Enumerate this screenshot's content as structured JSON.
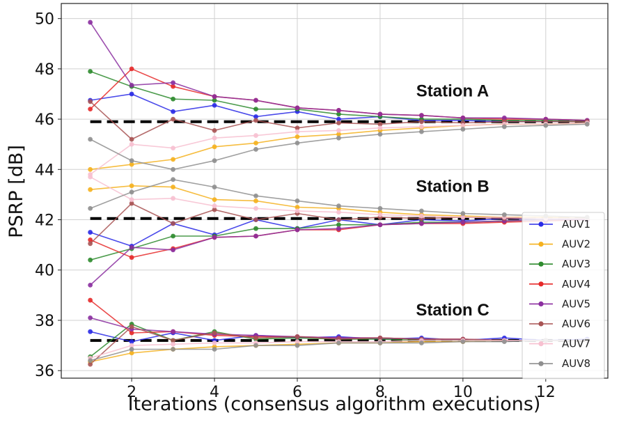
{
  "chart_data": {
    "type": "line",
    "xlabel": "Iterations  (consensus algorithm executions)",
    "ylabel": "PSRP [dB]",
    "xlim": [
      0.3,
      13.5
    ],
    "ylim": [
      35.7,
      50.6
    ],
    "xticks": [
      2,
      4,
      6,
      8,
      10,
      12
    ],
    "yticks": [
      36,
      38,
      40,
      42,
      44,
      46,
      48,
      50
    ],
    "grid": true,
    "legend_position": "bottom-right",
    "x": [
      1,
      2,
      3,
      4,
      5,
      6,
      7,
      8,
      9,
      10,
      11,
      12,
      13
    ],
    "series": [
      {
        "name": "AUV1",
        "color": "#2a2ae6"
      },
      {
        "name": "AUV2",
        "color": "#f5b11e"
      },
      {
        "name": "AUV3",
        "color": "#2e8b2e"
      },
      {
        "name": "AUV4",
        "color": "#e62a2a"
      },
      {
        "name": "AUV5",
        "color": "#8b2fa0"
      },
      {
        "name": "AUV6",
        "color": "#a85454"
      },
      {
        "name": "AUV7",
        "color": "#f7c0d0"
      },
      {
        "name": "AUV8",
        "color": "#8f8f8f"
      }
    ],
    "groups": [
      {
        "label": "Station A",
        "reference": 45.9,
        "values": {
          "AUV1": [
            46.75,
            47.0,
            46.3,
            46.55,
            46.1,
            46.3,
            46.0,
            46.1,
            45.95,
            45.95,
            45.9,
            45.9,
            45.9
          ],
          "AUV2": [
            44.0,
            44.2,
            44.4,
            44.9,
            45.05,
            45.3,
            45.4,
            45.55,
            45.65,
            45.75,
            45.8,
            45.8,
            45.85
          ],
          "AUV3": [
            47.9,
            47.3,
            46.8,
            46.75,
            46.4,
            46.4,
            46.2,
            46.1,
            46.0,
            46.0,
            45.95,
            45.95,
            45.9
          ],
          "AUV4": [
            46.4,
            48.0,
            47.3,
            46.9,
            46.75,
            46.45,
            46.35,
            46.2,
            46.15,
            46.05,
            46.0,
            46.0,
            45.95
          ],
          "AUV5": [
            49.85,
            47.35,
            47.45,
            46.9,
            46.75,
            46.45,
            46.35,
            46.2,
            46.15,
            46.05,
            46.05,
            46.0,
            45.95
          ],
          "AUV6": [
            46.7,
            45.2,
            46.0,
            45.55,
            45.95,
            45.65,
            45.85,
            45.8,
            45.9,
            45.85,
            45.9,
            45.9,
            45.9
          ],
          "AUV7": [
            43.8,
            45.0,
            44.85,
            45.25,
            45.35,
            45.5,
            45.55,
            45.65,
            45.7,
            45.75,
            45.8,
            45.8,
            45.85
          ],
          "AUV8": [
            45.2,
            44.35,
            44.0,
            44.35,
            44.8,
            45.05,
            45.25,
            45.4,
            45.5,
            45.6,
            45.7,
            45.75,
            45.8
          ]
        }
      },
      {
        "label": "Station B",
        "reference": 42.05,
        "values": {
          "AUV1": [
            41.5,
            40.95,
            41.85,
            41.4,
            42.0,
            41.65,
            42.0,
            41.8,
            42.0,
            41.95,
            42.05,
            42.0,
            42.05
          ],
          "AUV2": [
            43.2,
            43.35,
            43.3,
            42.8,
            42.75,
            42.5,
            42.45,
            42.3,
            42.2,
            42.15,
            42.1,
            42.1,
            42.05
          ],
          "AUV3": [
            40.4,
            40.85,
            41.35,
            41.35,
            41.65,
            41.65,
            41.8,
            41.8,
            41.9,
            41.9,
            41.95,
            42.0,
            42.0
          ],
          "AUV4": [
            41.2,
            40.5,
            40.85,
            41.3,
            41.35,
            41.6,
            41.6,
            41.8,
            41.85,
            41.85,
            41.9,
            41.95,
            42.0
          ],
          "AUV5": [
            39.4,
            40.9,
            40.8,
            41.3,
            41.35,
            41.6,
            41.65,
            41.8,
            41.85,
            41.9,
            41.95,
            42.0,
            42.0
          ],
          "AUV6": [
            41.05,
            42.65,
            41.85,
            42.4,
            42.0,
            42.25,
            42.0,
            42.1,
            42.05,
            42.1,
            42.05,
            42.05,
            42.05
          ],
          "AUV7": [
            43.7,
            42.8,
            42.85,
            42.55,
            42.45,
            42.35,
            42.3,
            42.2,
            42.15,
            42.1,
            42.1,
            42.05,
            42.05
          ],
          "AUV8": [
            42.45,
            43.1,
            43.6,
            43.3,
            42.95,
            42.75,
            42.55,
            42.45,
            42.35,
            42.25,
            42.2,
            42.15,
            42.1
          ]
        }
      },
      {
        "label": "Station C",
        "reference": 37.2,
        "values": {
          "AUV1": [
            37.55,
            37.15,
            37.5,
            37.2,
            37.4,
            37.3,
            37.35,
            37.25,
            37.3,
            37.2,
            37.3,
            37.2,
            37.25
          ],
          "AUV2": [
            36.35,
            36.7,
            36.85,
            36.95,
            37.0,
            37.05,
            37.1,
            37.1,
            37.15,
            37.15,
            37.2,
            37.2,
            37.2
          ],
          "AUV3": [
            36.55,
            37.85,
            37.2,
            37.55,
            37.25,
            37.3,
            37.25,
            37.25,
            37.2,
            37.2,
            37.2,
            37.2,
            37.2
          ],
          "AUV4": [
            38.8,
            37.5,
            37.55,
            37.4,
            37.35,
            37.35,
            37.3,
            37.3,
            37.25,
            37.25,
            37.2,
            37.2,
            37.2
          ],
          "AUV5": [
            38.1,
            37.65,
            37.55,
            37.45,
            37.4,
            37.35,
            37.3,
            37.3,
            37.25,
            37.25,
            37.2,
            37.2,
            37.2
          ],
          "AUV6": [
            36.25,
            37.75,
            37.2,
            37.5,
            37.3,
            37.35,
            37.25,
            37.3,
            37.25,
            37.25,
            37.2,
            37.2,
            37.2
          ],
          "AUV7": [
            36.5,
            37.0,
            37.05,
            37.1,
            37.1,
            37.15,
            37.15,
            37.15,
            37.2,
            37.2,
            37.2,
            37.2,
            37.2
          ],
          "AUV8": [
            36.4,
            36.85,
            36.85,
            36.85,
            37.0,
            37.0,
            37.1,
            37.1,
            37.1,
            37.15,
            37.15,
            37.2,
            37.2
          ]
        }
      }
    ]
  }
}
